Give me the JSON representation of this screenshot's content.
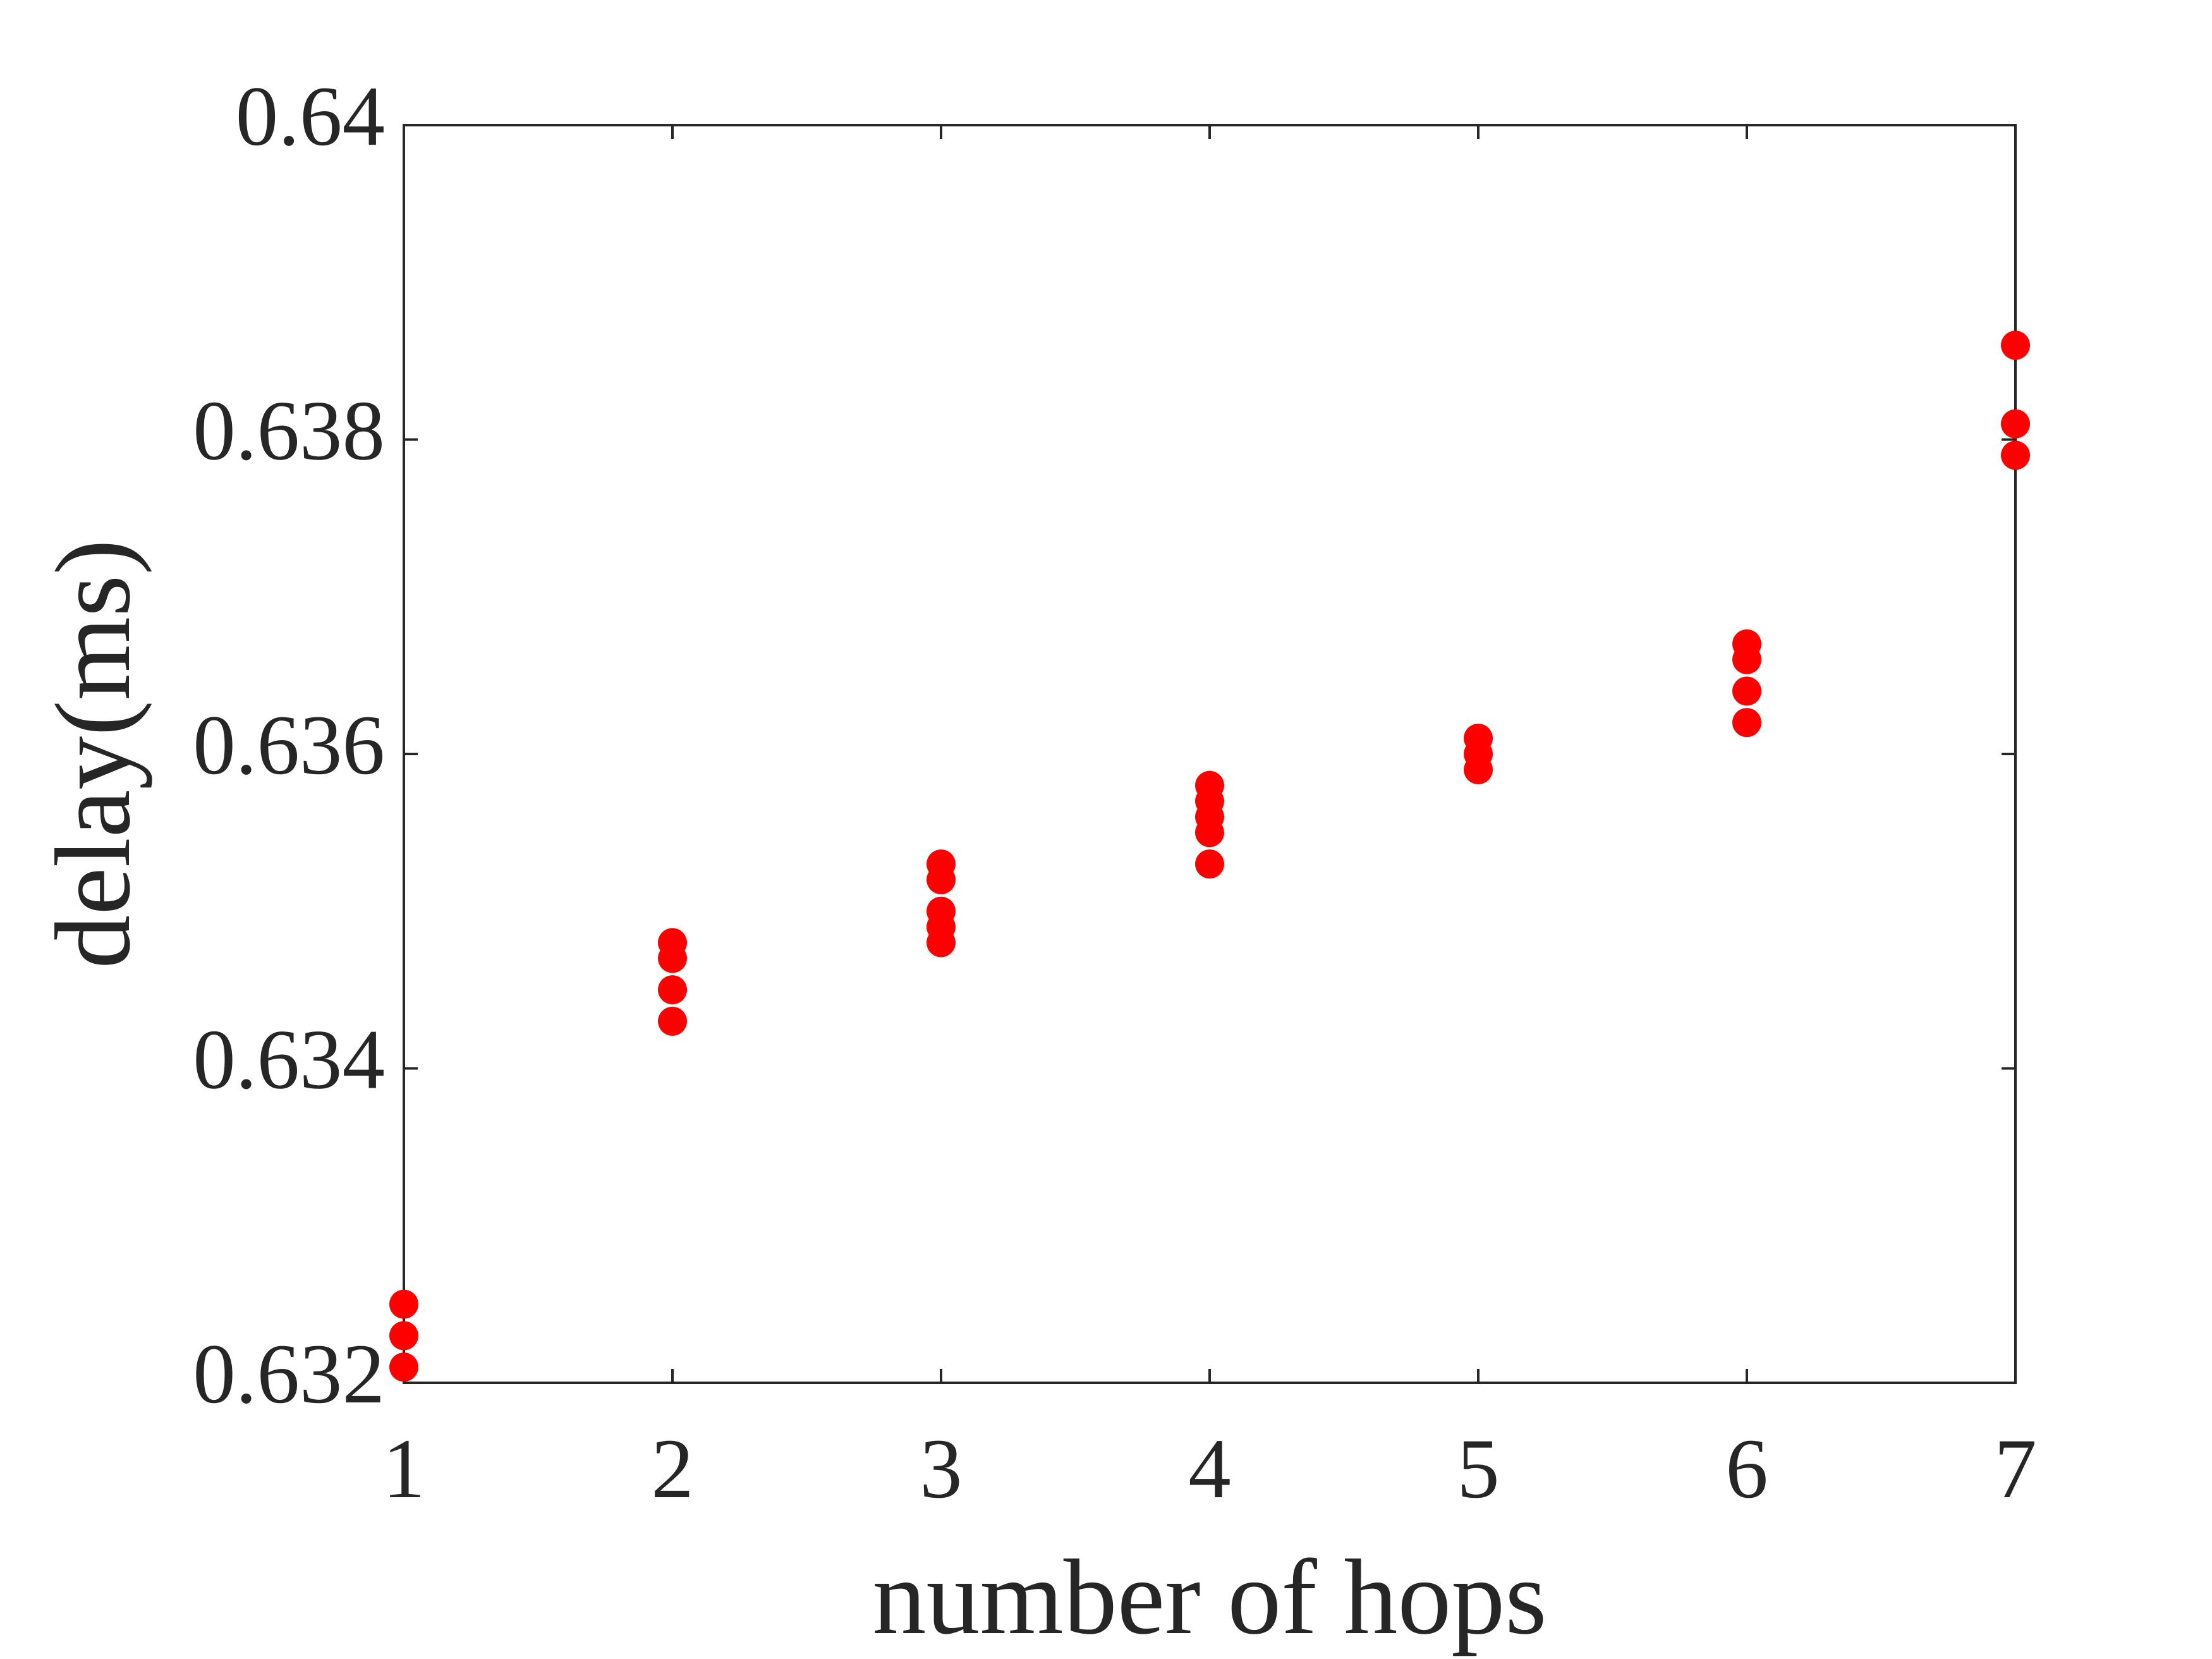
{
  "chart_data": {
    "type": "scatter",
    "xlabel": "number of hops",
    "ylabel": "delay(ms)",
    "x": [
      1,
      1,
      1,
      2,
      2,
      2,
      2,
      3,
      3,
      3,
      3,
      3,
      4,
      4,
      4,
      4,
      4,
      5,
      5,
      5,
      6,
      6,
      6,
      6,
      7,
      7,
      7
    ],
    "values": [
      0.6325,
      0.6323,
      0.6321,
      0.6348,
      0.6347,
      0.6345,
      0.6343,
      0.6353,
      0.6352,
      0.635,
      0.6349,
      0.6348,
      0.6358,
      0.6357,
      0.6356,
      0.6355,
      0.6353,
      0.6361,
      0.636,
      0.6359,
      0.6367,
      0.6366,
      0.6364,
      0.6362,
      0.6386,
      0.6381,
      0.6379
    ],
    "color": "#ff0000",
    "xlim": [
      1,
      7
    ],
    "xticks": [
      1,
      2,
      3,
      4,
      5,
      6,
      7
    ],
    "ylim": [
      0.632,
      0.64
    ],
    "yticks": [
      0.632,
      0.634,
      0.636,
      0.638,
      0.64
    ],
    "grid": false
  }
}
